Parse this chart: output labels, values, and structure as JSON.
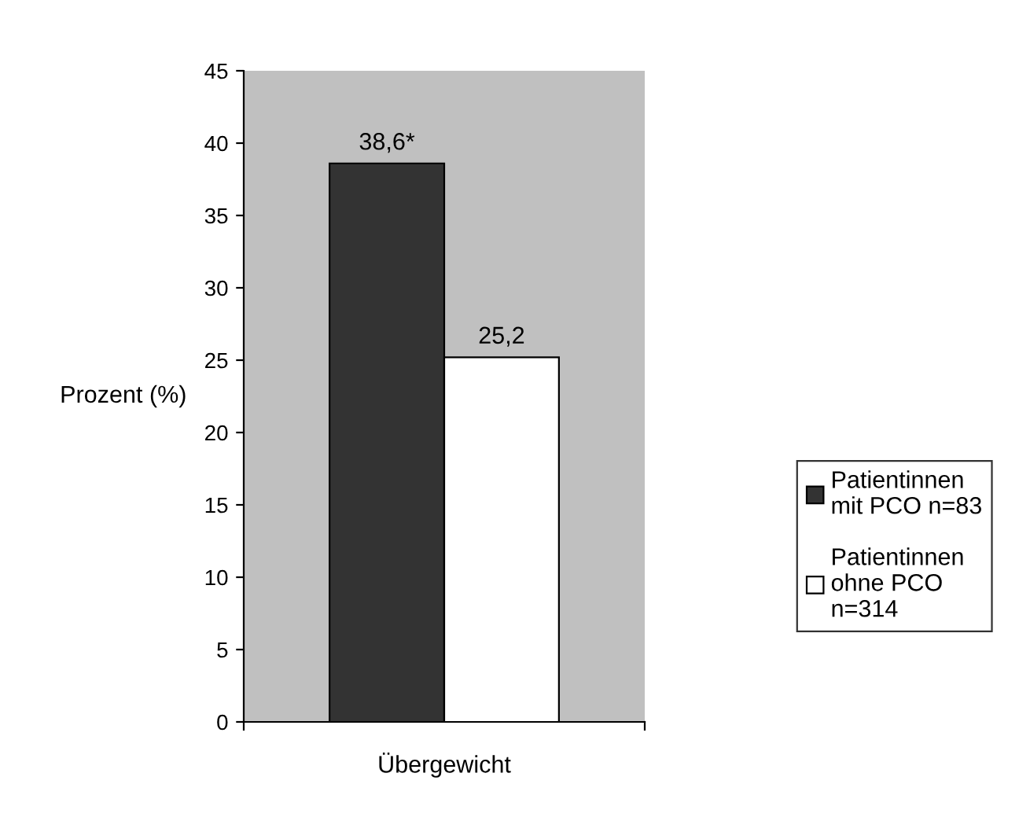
{
  "chart_data": {
    "type": "bar",
    "categories": [
      "Übergewicht"
    ],
    "ylabel": "Prozent (%)",
    "series": [
      {
        "name": "Patientinnen\nmit PCO n=83",
        "color": "#333333",
        "values": [
          38.6
        ],
        "value_labels": [
          "38,6*"
        ]
      },
      {
        "name": "Patientinnen\nohne PCO\nn=314",
        "color": "#ffffff",
        "values": [
          25.2
        ],
        "value_labels": [
          "25,2"
        ]
      }
    ],
    "ylim": [
      0,
      45
    ],
    "yticks": [
      0,
      5,
      10,
      15,
      20,
      25,
      30,
      35,
      40,
      45
    ],
    "grid": false,
    "legend": "right"
  }
}
